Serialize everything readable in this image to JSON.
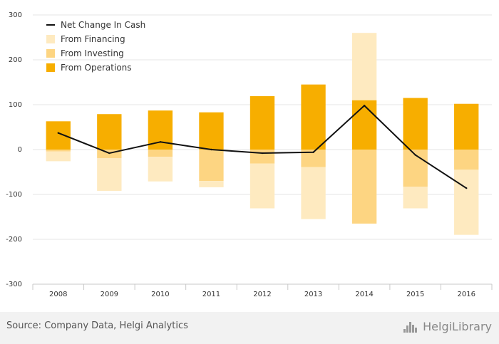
{
  "chart_data": {
    "type": "bar",
    "stacked": true,
    "categories": [
      "2008",
      "2009",
      "2010",
      "2011",
      "2012",
      "2013",
      "2014",
      "2015",
      "2016"
    ],
    "series": [
      {
        "name": "From Operations",
        "kind": "bar",
        "color": "#f7ae00",
        "values": [
          63,
          79,
          87,
          83,
          119,
          145,
          110,
          115,
          102
        ]
      },
      {
        "name": "From Investing",
        "kind": "bar",
        "color": "#fdd582",
        "values": [
          -4,
          -19,
          -16,
          -70,
          -31,
          -39,
          -165,
          -83,
          -45
        ]
      },
      {
        "name": "From Financing",
        "kind": "bar",
        "color": "#feeac0",
        "values": [
          -22,
          -73,
          -55,
          -14,
          -100,
          -116,
          150,
          -48,
          -145
        ]
      },
      {
        "name": "Net Change In Cash",
        "kind": "line",
        "color": "#111111",
        "values": [
          37,
          -8,
          17,
          0,
          -8,
          -6,
          98,
          -12,
          -86
        ]
      }
    ],
    "ylim": [
      -300,
      300
    ],
    "yticks": [
      -300,
      -200,
      -100,
      0,
      100,
      200,
      300
    ],
    "grid": true,
    "legend": "top-left",
    "legend_order": [
      "Net Change In Cash",
      "From Financing",
      "From Investing",
      "From Operations"
    ]
  },
  "footer": {
    "source": "Source: Company Data, Helgi Analytics",
    "logo_text": "HelgiLibrary",
    "logo_icon": "helgi-library-icon"
  }
}
